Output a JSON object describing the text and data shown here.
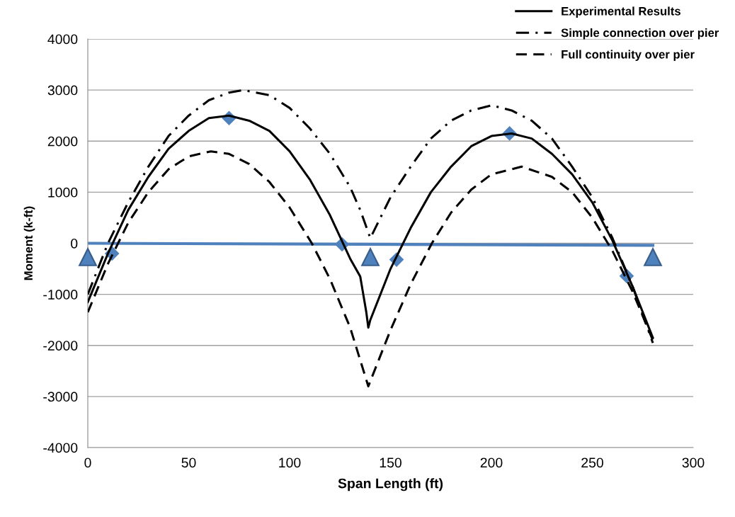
{
  "chart_data": {
    "type": "line",
    "xlabel": "Span Length (ft)",
    "ylabel": "Moment (k-ft)",
    "xlim": [
      0,
      300
    ],
    "xticks": [
      0,
      50,
      100,
      150,
      200,
      250,
      300
    ],
    "ylim": [
      -4000,
      4000
    ],
    "yticks": [
      -4000,
      -3000,
      -2000,
      -1000,
      0,
      1000,
      2000,
      3000,
      4000
    ],
    "grid": "y",
    "legend": "top right",
    "series": [
      {
        "name": "Experimental Results",
        "color": "#000000",
        "line_style": "solid",
        "marker": "none",
        "x": [
          0,
          10,
          20,
          30,
          40,
          50,
          60,
          70,
          80,
          90,
          100,
          110,
          120,
          130,
          135,
          138,
          139,
          140,
          150,
          160,
          170,
          180,
          190,
          200,
          210,
          220,
          230,
          240,
          250,
          260,
          270,
          280
        ],
        "values": [
          -1150,
          -200,
          650,
          1300,
          1850,
          2200,
          2450,
          2500,
          2400,
          2200,
          1800,
          1250,
          550,
          -300,
          -650,
          -1350,
          -1650,
          -1500,
          -500,
          300,
          1000,
          1500,
          1900,
          2100,
          2150,
          2050,
          1750,
          1350,
          800,
          50,
          -850,
          -1850
        ]
      },
      {
        "name": "Simple connection over pier",
        "color": "#000000",
        "line_style": "dashdot",
        "marker": "none",
        "x": [
          0,
          10,
          20,
          30,
          40,
          50,
          60,
          70,
          77,
          90,
          100,
          110,
          120,
          130,
          135,
          140,
          150,
          160,
          170,
          180,
          190,
          200,
          210,
          220,
          230,
          240,
          250,
          260,
          270,
          280
        ],
        "values": [
          -1000,
          0,
          800,
          1500,
          2100,
          2500,
          2800,
          2950,
          3000,
          2900,
          2650,
          2250,
          1750,
          1100,
          650,
          100,
          900,
          1500,
          2050,
          2400,
          2600,
          2700,
          2600,
          2400,
          2050,
          1500,
          900,
          100,
          -850,
          -1950
        ]
      },
      {
        "name": "Full continuity over pier",
        "color": "#000000",
        "line_style": "dashed",
        "marker": "none",
        "x": [
          0,
          10,
          20,
          30,
          40,
          50,
          61,
          70,
          80,
          90,
          100,
          111,
          120,
          130,
          139,
          150,
          160,
          170.5,
          180,
          190,
          200,
          215,
          230,
          240,
          250,
          260,
          270,
          280
        ],
        "values": [
          -1350,
          -400,
          400,
          1000,
          1450,
          1700,
          1800,
          1750,
          1550,
          1200,
          700,
          0,
          -700,
          -1650,
          -2800,
          -1700,
          -800,
          0,
          600,
          1050,
          1350,
          1500,
          1300,
          1000,
          500,
          -150,
          -950,
          -1900
        ]
      },
      {
        "color": "#4f81bd",
        "line_style": "solid",
        "marker": "none",
        "x": [
          0,
          280
        ],
        "values": [
          0,
          -40
        ]
      },
      {
        "type": "scatter",
        "color": "#4f81bd",
        "marker": "diamond",
        "x": [
          12,
          70,
          126,
          153,
          209,
          267
        ],
        "values": [
          -200,
          2450,
          -20,
          -320,
          2150,
          -640
        ]
      },
      {
        "type": "scatter",
        "color": "#4f81bd",
        "marker": "triangle",
        "x": [
          0,
          140,
          280
        ],
        "values": [
          -270,
          -270,
          -270
        ]
      }
    ]
  }
}
